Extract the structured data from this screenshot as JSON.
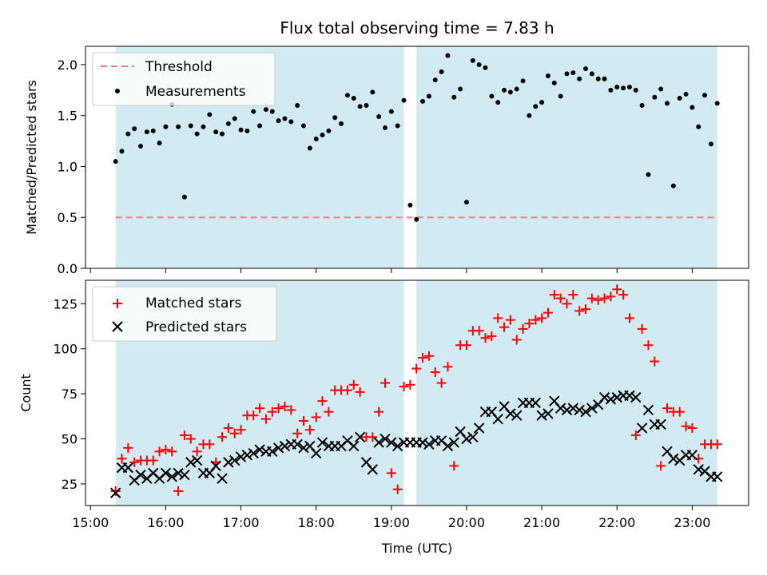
{
  "chart_data": [
    {
      "type": "scatter",
      "title": "Flux total observing time = 7.83 h",
      "ylabel": "Matched/Predicted stars",
      "xlabel": "",
      "ylim": [
        0,
        2.18
      ],
      "yticks": [
        0.0,
        0.5,
        1.0,
        1.5,
        2.0
      ],
      "ytick_labels": [
        "0.0",
        "0.5",
        "1.0",
        "1.5",
        "2.0"
      ],
      "legend_position": "top-left",
      "colors": {
        "measurements": "#000000",
        "threshold": "#f08080",
        "observing_band": "#add8e6"
      },
      "threshold": {
        "name": "Threshold",
        "value": 0.5
      },
      "observing_bands": [
        [
          "15:20",
          "19:10"
        ],
        [
          "19:20",
          "23:20"
        ]
      ],
      "series": [
        {
          "name": "Measurements",
          "x": [
            "15:20",
            "15:25",
            "15:30",
            "15:35",
            "15:40",
            "15:45",
            "15:50",
            "15:55",
            "16:00",
            "16:05",
            "16:10",
            "16:15",
            "16:20",
            "16:25",
            "16:30",
            "16:35",
            "16:40",
            "16:45",
            "16:50",
            "16:55",
            "17:00",
            "17:05",
            "17:10",
            "17:15",
            "17:20",
            "17:25",
            "17:30",
            "17:35",
            "17:40",
            "17:45",
            "17:50",
            "17:55",
            "18:00",
            "18:05",
            "18:10",
            "18:15",
            "18:20",
            "18:25",
            "18:30",
            "18:35",
            "18:40",
            "18:45",
            "18:50",
            "18:55",
            "19:00",
            "19:05",
            "19:10",
            "19:15",
            "19:20",
            "19:25",
            "19:30",
            "19:35",
            "19:40",
            "19:45",
            "19:50",
            "19:55",
            "20:00",
            "20:05",
            "20:10",
            "20:15",
            "20:20",
            "20:25",
            "20:30",
            "20:35",
            "20:40",
            "20:45",
            "20:50",
            "20:55",
            "21:00",
            "21:05",
            "21:10",
            "21:15",
            "21:20",
            "21:25",
            "21:30",
            "21:35",
            "21:40",
            "21:45",
            "21:50",
            "21:55",
            "22:00",
            "22:05",
            "22:10",
            "22:15",
            "22:20",
            "22:25",
            "22:30",
            "22:35",
            "22:40",
            "22:45",
            "22:50",
            "22:55",
            "23:00",
            "23:05",
            "23:10",
            "23:15",
            "23:20"
          ],
          "y": [
            1.05,
            1.15,
            1.32,
            1.37,
            1.2,
            1.34,
            1.35,
            1.23,
            1.39,
            1.61,
            1.39,
            0.7,
            1.4,
            1.32,
            1.39,
            1.51,
            1.34,
            1.32,
            1.42,
            1.47,
            1.36,
            1.35,
            1.54,
            1.4,
            1.56,
            1.54,
            1.45,
            1.47,
            1.44,
            1.6,
            1.4,
            1.18,
            1.27,
            1.31,
            1.35,
            1.48,
            1.42,
            1.7,
            1.67,
            1.59,
            1.6,
            1.73,
            1.49,
            1.38,
            1.54,
            1.4,
            1.65,
            0.62,
            0.48,
            1.64,
            1.69,
            1.85,
            1.93,
            2.09,
            1.68,
            1.76,
            0.65,
            2.04,
            2.0,
            1.97,
            1.69,
            1.63,
            1.75,
            1.73,
            1.76,
            1.84,
            1.5,
            1.59,
            1.63,
            1.89,
            1.82,
            1.69,
            1.91,
            1.92,
            1.86,
            1.96,
            1.91,
            1.86,
            1.86,
            1.75,
            1.78,
            1.77,
            1.78,
            1.75,
            1.6,
            0.92,
            1.68,
            1.76,
            1.62,
            0.81,
            1.67,
            1.71,
            1.58,
            1.39,
            1.7,
            1.22,
            1.62
          ]
        }
      ]
    },
    {
      "type": "scatter",
      "title": "",
      "ylabel": "Count",
      "xlabel": "Time (UTC)",
      "ylim": [
        13,
        138
      ],
      "yticks": [
        25,
        50,
        75,
        100,
        125
      ],
      "ytick_labels": [
        "25",
        "50",
        "75",
        "100",
        "125"
      ],
      "xlim": [
        "14:56",
        "23:45"
      ],
      "xticks": [
        "15:00",
        "16:00",
        "17:00",
        "18:00",
        "19:00",
        "20:00",
        "21:00",
        "22:00",
        "23:00"
      ],
      "legend_position": "top-left",
      "colors": {
        "matched": "#ff0000",
        "predicted": "#000000",
        "observing_band": "#add8e6"
      },
      "observing_bands": [
        [
          "15:20",
          "19:10"
        ],
        [
          "19:20",
          "23:20"
        ]
      ],
      "series": [
        {
          "name": "Matched stars",
          "marker": "plus",
          "x": [
            "15:20",
            "15:25",
            "15:30",
            "15:35",
            "15:40",
            "15:45",
            "15:50",
            "15:55",
            "16:00",
            "16:05",
            "16:10",
            "16:15",
            "16:20",
            "16:25",
            "16:30",
            "16:35",
            "16:40",
            "16:45",
            "16:50",
            "16:55",
            "17:00",
            "17:05",
            "17:10",
            "17:15",
            "17:20",
            "17:25",
            "17:30",
            "17:35",
            "17:40",
            "17:45",
            "17:50",
            "17:55",
            "18:00",
            "18:05",
            "18:10",
            "18:15",
            "18:20",
            "18:25",
            "18:30",
            "18:35",
            "18:40",
            "18:45",
            "18:50",
            "18:55",
            "19:00",
            "19:05",
            "19:10",
            "19:15",
            "19:20",
            "19:25",
            "19:30",
            "19:35",
            "19:40",
            "19:45",
            "19:50",
            "19:55",
            "20:00",
            "20:05",
            "20:10",
            "20:15",
            "20:20",
            "20:25",
            "20:30",
            "20:35",
            "20:40",
            "20:45",
            "20:50",
            "20:55",
            "21:00",
            "21:05",
            "21:10",
            "21:15",
            "21:20",
            "21:25",
            "21:30",
            "21:35",
            "21:40",
            "21:45",
            "21:50",
            "21:55",
            "22:00",
            "22:05",
            "22:10",
            "22:15",
            "22:20",
            "22:25",
            "22:30",
            "22:35",
            "22:40",
            "22:45",
            "22:50",
            "22:55",
            "23:00",
            "23:05",
            "23:10",
            "23:15",
            "23:20"
          ],
          "y": [
            21,
            39,
            45,
            37,
            38,
            38,
            38,
            43,
            44,
            43,
            21,
            52,
            50,
            43,
            47,
            47,
            37,
            51,
            56,
            53,
            55,
            63,
            63,
            67,
            61,
            65,
            67,
            68,
            66,
            53,
            60,
            55,
            62,
            71,
            65,
            77,
            77,
            77,
            80,
            76,
            51,
            51,
            65,
            81,
            31,
            22,
            79,
            80,
            89,
            95,
            96,
            87,
            81,
            90,
            35,
            102,
            102,
            110,
            110,
            106,
            107,
            117,
            112,
            116,
            105,
            111,
            114,
            116,
            117,
            120,
            130,
            128,
            125,
            130,
            121,
            122,
            128,
            127,
            128,
            129,
            133,
            130,
            117,
            52,
            111,
            102,
            93,
            35,
            67,
            65,
            65,
            57,
            56,
            39,
            47,
            47,
            47
          ]
        },
        {
          "name": "Predicted stars",
          "marker": "x",
          "x": [
            "15:20",
            "15:25",
            "15:30",
            "15:35",
            "15:40",
            "15:45",
            "15:50",
            "15:55",
            "16:00",
            "16:05",
            "16:10",
            "16:15",
            "16:20",
            "16:25",
            "16:30",
            "16:35",
            "16:40",
            "16:45",
            "16:50",
            "16:55",
            "17:00",
            "17:05",
            "17:10",
            "17:15",
            "17:20",
            "17:25",
            "17:30",
            "17:35",
            "17:40",
            "17:45",
            "17:50",
            "17:55",
            "18:00",
            "18:05",
            "18:10",
            "18:15",
            "18:20",
            "18:25",
            "18:30",
            "18:35",
            "18:40",
            "18:45",
            "18:50",
            "18:55",
            "19:00",
            "19:05",
            "19:10",
            "19:15",
            "19:20",
            "19:25",
            "19:30",
            "19:35",
            "19:40",
            "19:45",
            "19:50",
            "19:55",
            "20:00",
            "20:05",
            "20:10",
            "20:15",
            "20:20",
            "20:25",
            "20:30",
            "20:35",
            "20:40",
            "20:45",
            "20:50",
            "20:55",
            "21:00",
            "21:05",
            "21:10",
            "21:15",
            "21:20",
            "21:25",
            "21:30",
            "21:35",
            "21:40",
            "21:45",
            "21:50",
            "21:55",
            "22:00",
            "22:05",
            "22:10",
            "22:15",
            "22:20",
            "22:25",
            "22:30",
            "22:35",
            "22:40",
            "22:45",
            "22:50",
            "22:55",
            "23:00",
            "23:05",
            "23:10",
            "23:15",
            "23:20"
          ],
          "y": [
            20,
            34,
            34,
            27,
            30,
            28,
            31,
            28,
            31,
            29,
            31,
            30,
            37,
            38,
            31,
            31,
            35,
            28,
            37,
            38,
            40,
            41,
            42,
            44,
            43,
            43,
            45,
            46,
            47,
            47,
            45,
            46,
            42,
            48,
            46,
            46,
            46,
            49,
            46,
            51,
            37,
            33,
            48,
            50,
            48,
            46,
            48,
            48,
            48,
            48,
            47,
            49,
            49,
            46,
            48,
            54,
            50,
            51,
            56,
            65,
            65,
            61,
            68,
            64,
            63,
            70,
            70,
            70,
            63,
            64,
            71,
            67,
            66,
            67,
            66,
            65,
            67,
            69,
            73,
            72,
            73,
            74,
            74,
            73,
            56,
            66,
            58,
            58,
            43,
            39,
            38,
            41,
            41,
            33,
            32,
            29,
            29
          ]
        }
      ]
    }
  ]
}
